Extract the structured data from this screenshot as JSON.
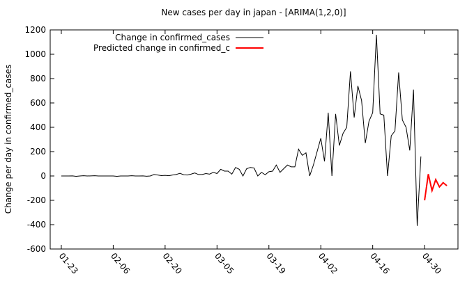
{
  "chart_data": {
    "type": "line",
    "title": "New cases per day in japan -  [ARIMA(1,2,0)]",
    "y_label": "Change per day in confirmed_cases",
    "legend": "top-left",
    "grid": false,
    "xlim": [
      "01-20",
      "05-09"
    ],
    "xticks": [
      "01-23",
      "02-06",
      "02-20",
      "03-05",
      "03-19",
      "04-02",
      "04-16",
      "04-30"
    ],
    "ylim": [
      -600,
      1200
    ],
    "yticks": [
      -600,
      -400,
      -200,
      0,
      200,
      400,
      600,
      800,
      1000,
      1200
    ],
    "series": [
      {
        "name": "Change in confirmed_cases",
        "color": "#000000",
        "x": [
          "01-23",
          "01-24",
          "01-25",
          "01-26",
          "01-27",
          "01-28",
          "01-29",
          "01-30",
          "01-31",
          "02-01",
          "02-02",
          "02-03",
          "02-04",
          "02-05",
          "02-06",
          "02-07",
          "02-08",
          "02-09",
          "02-10",
          "02-11",
          "02-12",
          "02-13",
          "02-14",
          "02-15",
          "02-16",
          "02-17",
          "02-18",
          "02-19",
          "02-20",
          "02-21",
          "02-22",
          "02-23",
          "02-24",
          "02-25",
          "02-26",
          "02-27",
          "02-28",
          "02-29",
          "03-01",
          "03-02",
          "03-03",
          "03-04",
          "03-05",
          "03-06",
          "03-07",
          "03-08",
          "03-09",
          "03-10",
          "03-11",
          "03-12",
          "03-13",
          "03-14",
          "03-15",
          "03-16",
          "03-17",
          "03-18",
          "03-19",
          "03-20",
          "03-21",
          "03-22",
          "03-23",
          "03-24",
          "03-25",
          "03-26",
          "03-27",
          "03-28",
          "03-29",
          "03-30",
          "03-31",
          "04-01",
          "04-02",
          "04-03",
          "04-04",
          "04-05",
          "04-06",
          "04-07",
          "04-08",
          "04-09",
          "04-10",
          "04-11",
          "04-12",
          "04-13",
          "04-14",
          "04-15",
          "04-16",
          "04-17",
          "04-18",
          "04-19",
          "04-20",
          "04-21",
          "04-22",
          "04-23",
          "04-24",
          "04-25",
          "04-26",
          "04-27",
          "04-28",
          "04-29"
        ],
        "values": [
          0,
          0,
          0,
          1,
          -3,
          0,
          2,
          0,
          1,
          2,
          0,
          0,
          0,
          0,
          0,
          -3,
          0,
          0,
          0,
          2,
          0,
          0,
          1,
          -2,
          0,
          12,
          8,
          3,
          5,
          2,
          8,
          12,
          22,
          10,
          8,
          15,
          25,
          12,
          12,
          20,
          15,
          30,
          20,
          55,
          40,
          40,
          15,
          70,
          55,
          0,
          60,
          70,
          65,
          0,
          30,
          10,
          35,
          40,
          90,
          30,
          60,
          90,
          75,
          75,
          220,
          170,
          190,
          0,
          90,
          200,
          310,
          120,
          520,
          0,
          510,
          250,
          350,
          400,
          860,
          480,
          740,
          620,
          270,
          450,
          520,
          1160,
          510,
          500,
          0,
          330,
          370,
          850,
          460,
          400,
          210,
          710,
          -410,
          160
        ]
      },
      {
        "name": "Predicted change in confirmed_c",
        "color": "#ff0000",
        "x": [
          "04-30",
          "05-01",
          "05-02",
          "05-03",
          "05-04",
          "05-05",
          "05-06"
        ],
        "values": [
          -200,
          15,
          -120,
          -30,
          -90,
          -55,
          -80
        ]
      }
    ]
  }
}
